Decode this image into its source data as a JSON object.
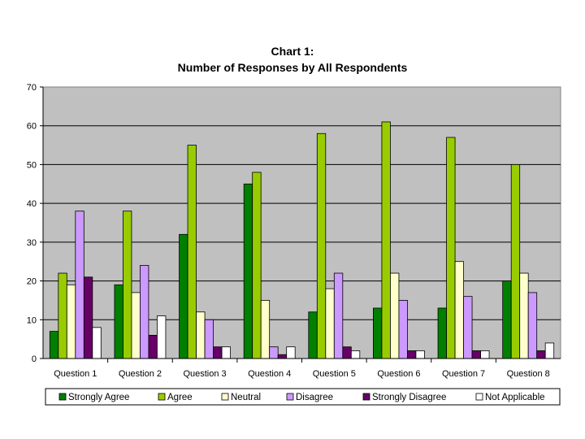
{
  "chart_data": {
    "type": "bar",
    "title": [
      "Chart 1:",
      "Number of Responses by All Respondents"
    ],
    "xlabel": "",
    "ylabel": "",
    "ylim": [
      0,
      70
    ],
    "yticks": [
      0,
      10,
      20,
      30,
      40,
      50,
      60,
      70
    ],
    "grid": true,
    "legend_position": "bottom",
    "categories": [
      "Question 1",
      "Question 2",
      "Question 3",
      "Question 4",
      "Question 5",
      "Question 6",
      "Question 7",
      "Question 8"
    ],
    "series": [
      {
        "name": "Strongly Agree",
        "color": "#007F00",
        "values": [
          7,
          19,
          32,
          45,
          12,
          13,
          13,
          20
        ]
      },
      {
        "name": "Agree",
        "color": "#99CC00",
        "values": [
          22,
          38,
          55,
          48,
          58,
          61,
          57,
          50
        ]
      },
      {
        "name": "Neutral",
        "color": "#FFFFCC",
        "values": [
          19,
          17,
          12,
          15,
          18,
          22,
          25,
          22
        ]
      },
      {
        "name": "Disagree",
        "color": "#CC99FF",
        "values": [
          38,
          24,
          10,
          3,
          22,
          15,
          16,
          17
        ]
      },
      {
        "name": "Strongly Disagree",
        "color": "#660066",
        "values": [
          21,
          6,
          3,
          1,
          3,
          2,
          2,
          2
        ]
      },
      {
        "name": "Not Applicable",
        "color": "#FFFFFF",
        "values": [
          8,
          11,
          3,
          3,
          2,
          2,
          2,
          4
        ]
      }
    ],
    "plot_background": "#C0C0C0"
  }
}
